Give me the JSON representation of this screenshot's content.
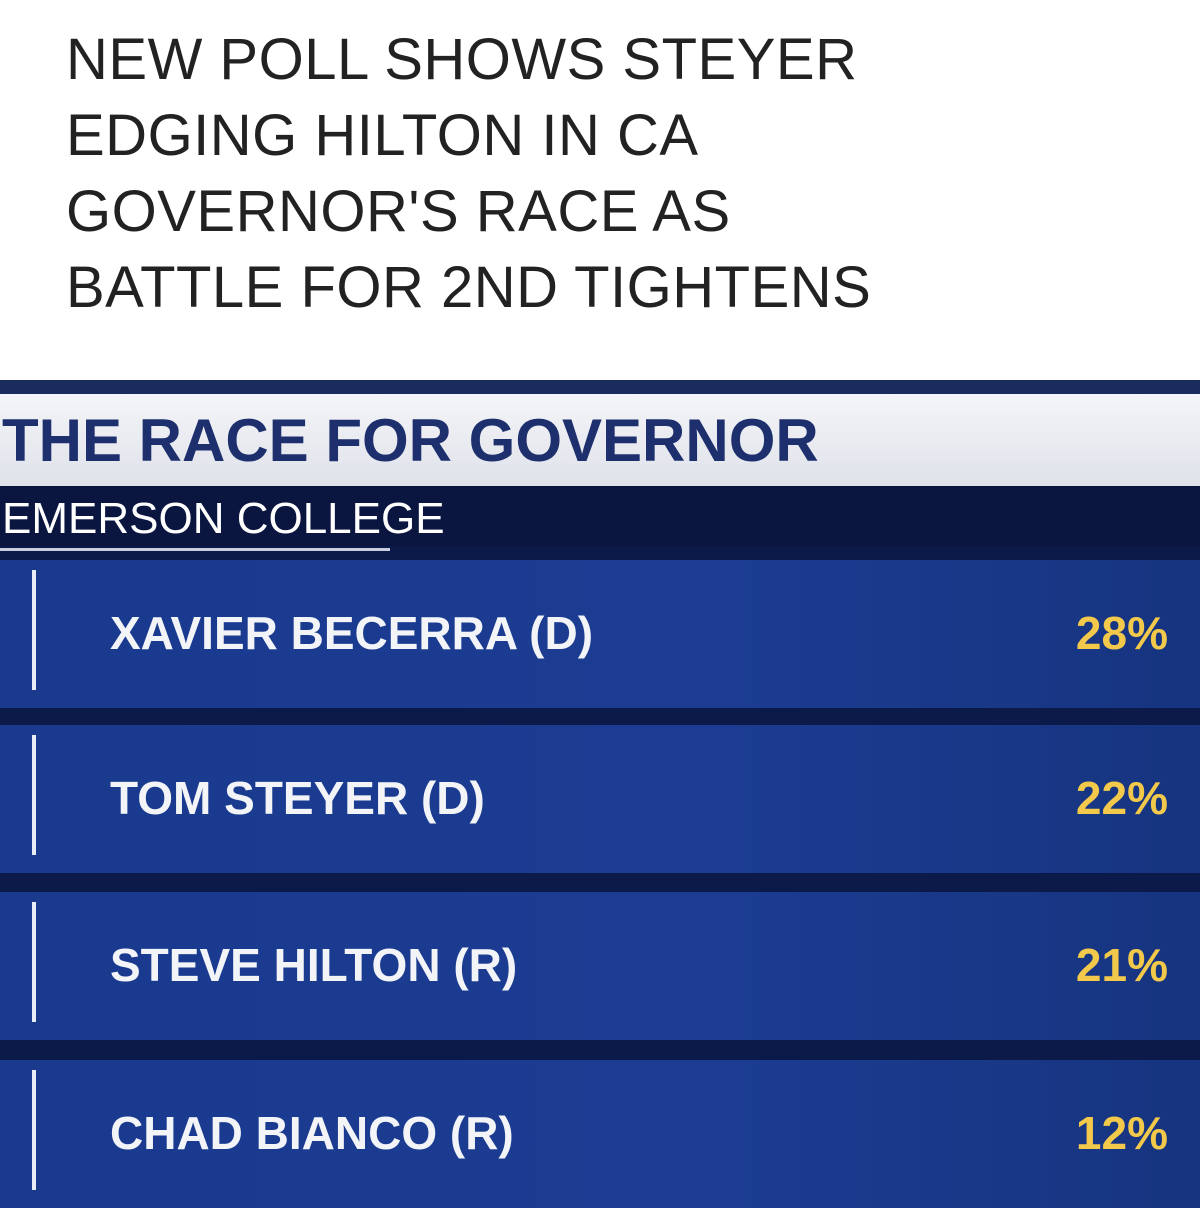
{
  "headline": {
    "lines": [
      "NEW POLL SHOWS STEYER",
      "EDGING HILTON IN CA",
      "GOVERNOR'S RACE AS",
      "BATTLE FOR 2ND TIGHTENS"
    ]
  },
  "graphic": {
    "title": "THE RACE FOR GOVERNOR",
    "source": "EMERSON COLLEGE",
    "rows": [
      {
        "name": "XAVIER BECERRA (D)",
        "value": "28%"
      },
      {
        "name": "TOM STEYER (D)",
        "value": "22%"
      },
      {
        "name": "STEVE HILTON (R)",
        "value": "21%"
      },
      {
        "name": "CHAD BIANCO (R)",
        "value": "12%"
      }
    ]
  }
}
